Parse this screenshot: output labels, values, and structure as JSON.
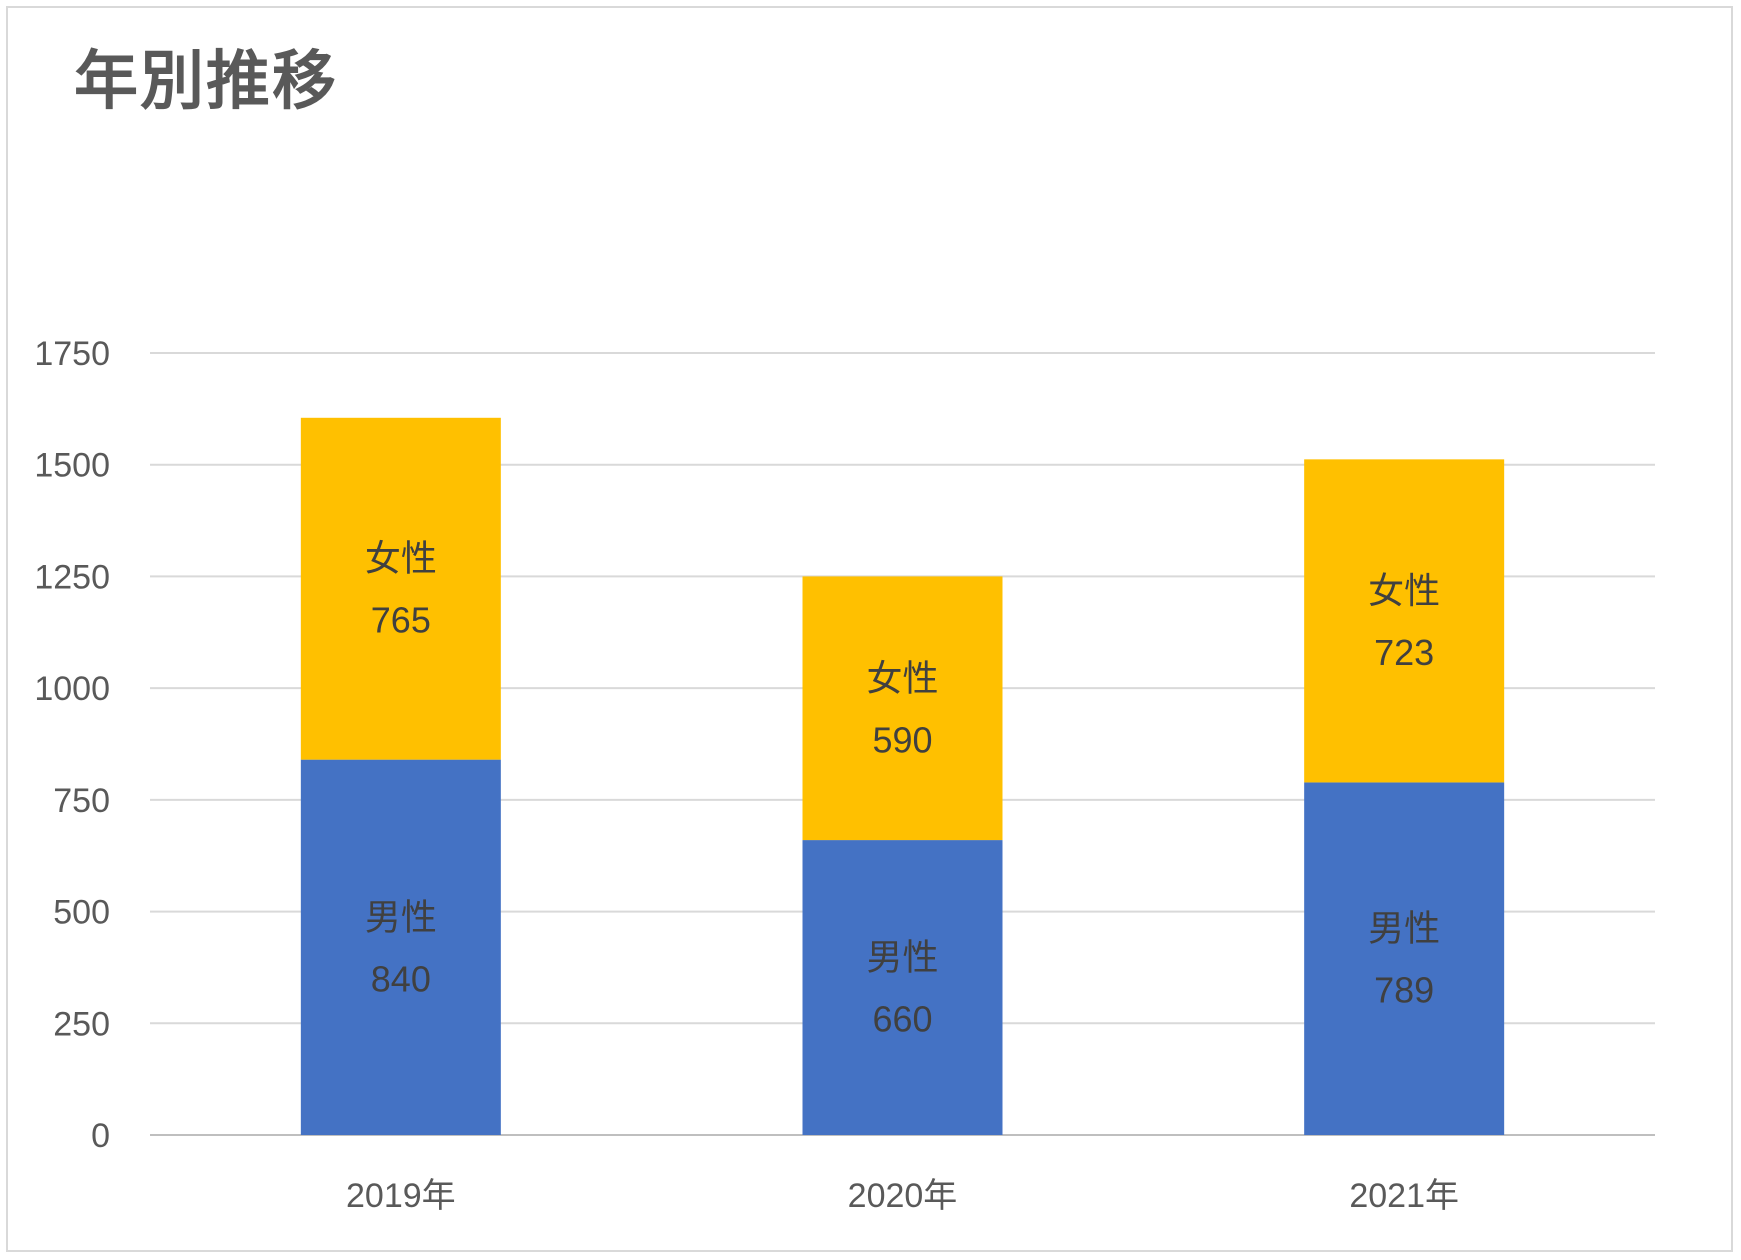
{
  "chart_data": {
    "type": "bar",
    "stacked": true,
    "title": "年別推移",
    "categories": [
      "2019年",
      "2020年",
      "2021年"
    ],
    "series": [
      {
        "name": "男性",
        "values": [
          840,
          660,
          789
        ],
        "color": "#4472C4"
      },
      {
        "name": "女性",
        "values": [
          765,
          590,
          723
        ],
        "color": "#FFC000"
      }
    ],
    "ylim": [
      0,
      1750
    ],
    "yticks": [
      0,
      250,
      500,
      750,
      1000,
      1250,
      1500,
      1750
    ],
    "grid": true,
    "legend": "none",
    "data_labels": "category name and value inside segments"
  }
}
